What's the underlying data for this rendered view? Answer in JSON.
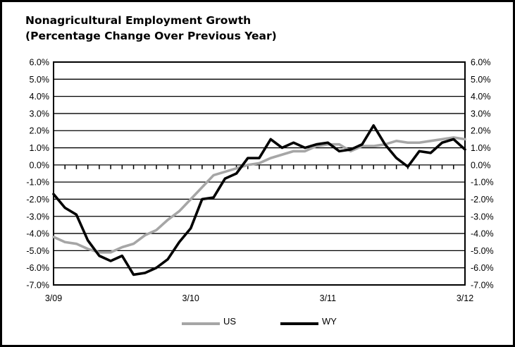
{
  "chart_data": {
    "type": "line",
    "title_line1": "Nonagricultural Employment Growth",
    "title_line2": "(Percentage Change Over Previous Year)",
    "ylim": [
      -7.0,
      6.0
    ],
    "y_ticks": [
      "6.0%",
      "5.0%",
      "4.0%",
      "3.0%",
      "2.0%",
      "1.0%",
      "0.0%",
      "-1.0%",
      "-2.0%",
      "-3.0%",
      "-4.0%",
      "-5.0%",
      "-6.0%",
      "-7.0%"
    ],
    "x_tick_labels": [
      "3/09",
      "3/10",
      "3/11",
      "3/12"
    ],
    "grid": true,
    "legend_position": "bottom",
    "series": [
      {
        "name": "US",
        "color": "#a6a6a6",
        "values": [
          -4.2,
          -4.5,
          -4.6,
          -4.9,
          -5.1,
          -5.1,
          -4.8,
          -4.6,
          -4.1,
          -3.8,
          -3.2,
          -2.7,
          -2.0,
          -1.3,
          -0.6,
          -0.4,
          -0.2,
          0.0,
          0.1,
          0.4,
          0.6,
          0.8,
          0.8,
          1.1,
          1.2,
          1.2,
          0.8,
          1.1,
          1.1,
          1.2,
          1.4,
          1.3,
          1.3,
          1.4,
          1.5,
          1.6,
          1.5
        ]
      },
      {
        "name": "WY",
        "color": "#000000",
        "values": [
          -1.7,
          -2.5,
          -2.9,
          -4.4,
          -5.3,
          -5.6,
          -5.3,
          -6.4,
          -6.3,
          -6.0,
          -5.5,
          -4.5,
          -3.7,
          -2.0,
          -1.9,
          -0.8,
          -0.5,
          0.4,
          0.4,
          1.5,
          1.0,
          1.3,
          1.0,
          1.2,
          1.3,
          0.8,
          0.9,
          1.2,
          2.3,
          1.2,
          0.4,
          -0.1,
          0.8,
          0.7,
          1.3,
          1.5,
          0.9
        ]
      }
    ]
  }
}
